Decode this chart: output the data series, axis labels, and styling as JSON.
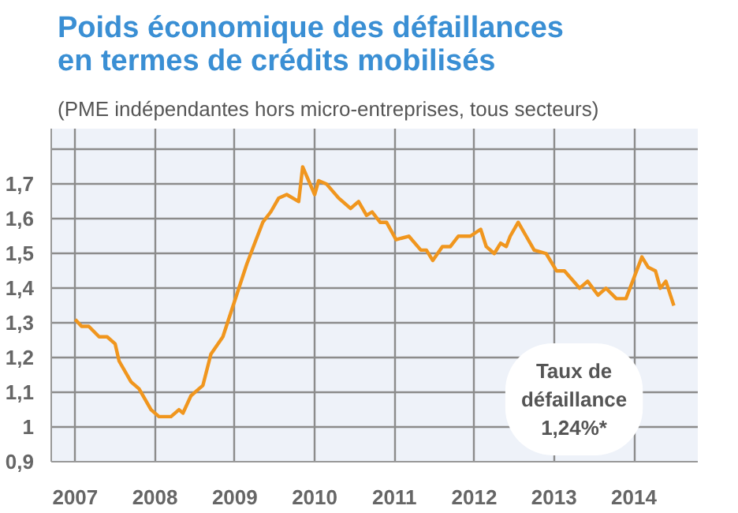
{
  "chart_data": {
    "type": "line",
    "title": "Poids économique des défaillances\nen termes de crédits mobilisés",
    "subtitle": "(PME indépendantes hors micro-entreprises, tous secteurs)",
    "x": [
      2007.0,
      2007.08,
      2007.17,
      2007.3,
      2007.4,
      2007.5,
      2007.55,
      2007.7,
      2007.8,
      2007.95,
      2008.05,
      2008.2,
      2008.3,
      2008.35,
      2008.45,
      2008.6,
      2008.7,
      2008.85,
      2008.95,
      2009.05,
      2009.15,
      2009.25,
      2009.35,
      2009.45,
      2009.55,
      2009.65,
      2009.8,
      2009.85,
      2010.0,
      2010.05,
      2010.15,
      2010.3,
      2010.45,
      2010.55,
      2010.65,
      2010.72,
      2010.82,
      2010.9,
      2011.02,
      2011.18,
      2011.33,
      2011.4,
      2011.48,
      2011.6,
      2011.7,
      2011.8,
      2011.95,
      2012.08,
      2012.15,
      2012.25,
      2012.33,
      2012.4,
      2012.45,
      2012.55,
      2012.65,
      2012.75,
      2012.9,
      2013.03,
      2013.13,
      2013.32,
      2013.42,
      2013.55,
      2013.65,
      2013.78,
      2013.9,
      2014.1,
      2014.18,
      2014.27,
      2014.33,
      2014.4,
      2014.5
    ],
    "series": [
      {
        "color": "#f0961e",
        "values": [
          1.31,
          1.29,
          1.29,
          1.26,
          1.26,
          1.24,
          1.19,
          1.13,
          1.11,
          1.05,
          1.03,
          1.03,
          1.05,
          1.04,
          1.09,
          1.12,
          1.21,
          1.26,
          1.33,
          1.4,
          1.47,
          1.53,
          1.59,
          1.62,
          1.66,
          1.67,
          1.65,
          1.75,
          1.67,
          1.71,
          1.7,
          1.66,
          1.63,
          1.65,
          1.61,
          1.62,
          1.59,
          1.59,
          1.54,
          1.55,
          1.51,
          1.51,
          1.48,
          1.52,
          1.52,
          1.55,
          1.55,
          1.57,
          1.52,
          1.5,
          1.53,
          1.52,
          1.55,
          1.59,
          1.55,
          1.51,
          1.5,
          1.45,
          1.45,
          1.4,
          1.42,
          1.38,
          1.4,
          1.37,
          1.37,
          1.49,
          1.46,
          1.45,
          1.4,
          1.42,
          1.35
        ]
      }
    ],
    "xlim": [
      2006.7,
      2014.8
    ],
    "xticks": [
      2007,
      2008,
      2009,
      2010,
      2011,
      2012,
      2013,
      2014
    ],
    "ylim": [
      0.9,
      1.86
    ],
    "yticks": [
      {
        "value": 0.9,
        "label": "0,9"
      },
      {
        "value": 1,
        "label": "1"
      },
      {
        "value": 1.1,
        "label": "1,1"
      },
      {
        "value": 1.2,
        "label": "1,2"
      },
      {
        "value": 1.3,
        "label": "1,3"
      },
      {
        "value": 1.4,
        "label": "1,4"
      },
      {
        "value": 1.5,
        "label": "1,5"
      },
      {
        "value": 1.6,
        "label": "1,6"
      },
      {
        "value": 1.7,
        "label": "1,7"
      },
      {
        "value": 1.8,
        "label": null
      }
    ],
    "grid": true,
    "annotations": [
      "Taux de\ndéfaillance\n1,24%*"
    ]
  }
}
